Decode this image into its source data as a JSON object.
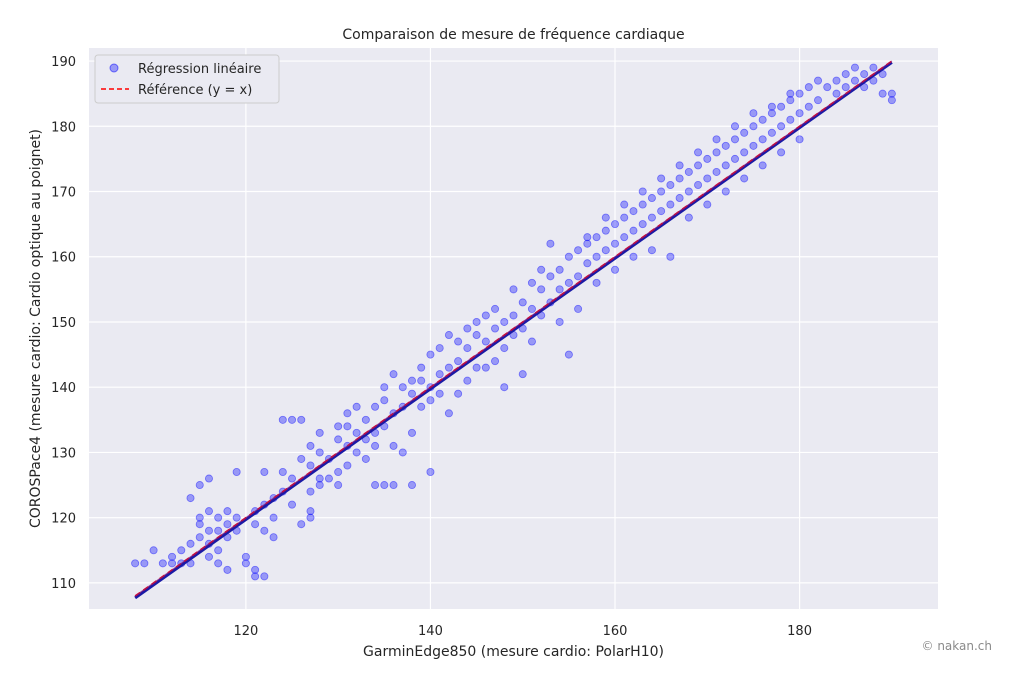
{
  "chart_data": {
    "type": "scatter",
    "title": "Comparaison de mesure de fréquence cardiaque",
    "xlabel": "GarminEdge850 (mesure cardio: PolarH10)",
    "ylabel": "COROSPace4 (mesure cardio: Cardio optique au poignet)",
    "xlim": [
      103,
      195
    ],
    "ylim": [
      106,
      192
    ],
    "xticks": [
      120,
      140,
      160,
      180
    ],
    "yticks": [
      110,
      120,
      130,
      140,
      150,
      160,
      170,
      180,
      190
    ],
    "grid": true,
    "legend_position": "top-left",
    "series": [
      {
        "name": "Régression linéaire",
        "kind": "scatter",
        "color": "#0000ff",
        "points": [
          [
            108,
            113
          ],
          [
            109,
            113
          ],
          [
            110,
            115
          ],
          [
            111,
            113
          ],
          [
            112,
            114
          ],
          [
            112,
            113
          ],
          [
            113,
            115
          ],
          [
            113,
            113
          ],
          [
            114,
            113
          ],
          [
            114,
            116
          ],
          [
            114,
            123
          ],
          [
            115,
            117
          ],
          [
            115,
            125
          ],
          [
            115,
            120
          ],
          [
            115,
            119
          ],
          [
            116,
            126
          ],
          [
            116,
            116
          ],
          [
            116,
            114
          ],
          [
            116,
            121
          ],
          [
            116,
            118
          ],
          [
            117,
            120
          ],
          [
            117,
            118
          ],
          [
            117,
            115
          ],
          [
            117,
            113
          ],
          [
            118,
            121
          ],
          [
            118,
            117
          ],
          [
            118,
            119
          ],
          [
            118,
            112
          ],
          [
            119,
            127
          ],
          [
            119,
            120
          ],
          [
            119,
            118
          ],
          [
            120,
            114
          ],
          [
            120,
            113
          ],
          [
            121,
            112
          ],
          [
            121,
            111
          ],
          [
            121,
            119
          ],
          [
            121,
            121
          ],
          [
            122,
            111
          ],
          [
            122,
            118
          ],
          [
            122,
            127
          ],
          [
            122,
            122
          ],
          [
            123,
            117
          ],
          [
            123,
            123
          ],
          [
            123,
            120
          ],
          [
            124,
            135
          ],
          [
            124,
            127
          ],
          [
            124,
            124
          ],
          [
            125,
            135
          ],
          [
            125,
            122
          ],
          [
            125,
            126
          ],
          [
            126,
            135
          ],
          [
            126,
            129
          ],
          [
            126,
            119
          ],
          [
            127,
            120
          ],
          [
            127,
            124
          ],
          [
            127,
            128
          ],
          [
            127,
            131
          ],
          [
            127,
            121
          ],
          [
            128,
            126
          ],
          [
            128,
            130
          ],
          [
            128,
            133
          ],
          [
            128,
            125
          ],
          [
            129,
            129
          ],
          [
            129,
            126
          ],
          [
            130,
            127
          ],
          [
            130,
            132
          ],
          [
            130,
            125
          ],
          [
            130,
            134
          ],
          [
            131,
            134
          ],
          [
            131,
            136
          ],
          [
            131,
            131
          ],
          [
            131,
            128
          ],
          [
            132,
            133
          ],
          [
            132,
            137
          ],
          [
            132,
            130
          ],
          [
            133,
            132
          ],
          [
            133,
            135
          ],
          [
            133,
            129
          ],
          [
            134,
            125
          ],
          [
            134,
            133
          ],
          [
            134,
            137
          ],
          [
            134,
            131
          ],
          [
            135,
            125
          ],
          [
            135,
            138
          ],
          [
            135,
            140
          ],
          [
            135,
            134
          ],
          [
            136,
            125
          ],
          [
            136,
            136
          ],
          [
            136,
            131
          ],
          [
            136,
            142
          ],
          [
            137,
            140
          ],
          [
            137,
            137
          ],
          [
            137,
            130
          ],
          [
            138,
            125
          ],
          [
            138,
            139
          ],
          [
            138,
            141
          ],
          [
            138,
            133
          ],
          [
            139,
            143
          ],
          [
            139,
            141
          ],
          [
            139,
            137
          ],
          [
            140,
            127
          ],
          [
            140,
            140
          ],
          [
            140,
            145
          ],
          [
            140,
            138
          ],
          [
            141,
            142
          ],
          [
            141,
            146
          ],
          [
            141,
            139
          ],
          [
            142,
            143
          ],
          [
            142,
            148
          ],
          [
            142,
            136
          ],
          [
            143,
            144
          ],
          [
            143,
            139
          ],
          [
            143,
            147
          ],
          [
            144,
            146
          ],
          [
            144,
            141
          ],
          [
            144,
            149
          ],
          [
            145,
            148
          ],
          [
            145,
            143
          ],
          [
            145,
            150
          ],
          [
            146,
            147
          ],
          [
            146,
            143
          ],
          [
            146,
            151
          ],
          [
            147,
            149
          ],
          [
            147,
            144
          ],
          [
            147,
            152
          ],
          [
            148,
            150
          ],
          [
            148,
            146
          ],
          [
            148,
            140
          ],
          [
            149,
            151
          ],
          [
            149,
            148
          ],
          [
            149,
            155
          ],
          [
            150,
            153
          ],
          [
            150,
            149
          ],
          [
            150,
            142
          ],
          [
            151,
            156
          ],
          [
            151,
            152
          ],
          [
            151,
            147
          ],
          [
            152,
            155
          ],
          [
            152,
            151
          ],
          [
            152,
            158
          ],
          [
            153,
            157
          ],
          [
            153,
            153
          ],
          [
            153,
            162
          ],
          [
            154,
            158
          ],
          [
            154,
            155
          ],
          [
            154,
            150
          ],
          [
            155,
            160
          ],
          [
            155,
            156
          ],
          [
            155,
            145
          ],
          [
            156,
            161
          ],
          [
            156,
            157
          ],
          [
            156,
            152
          ],
          [
            157,
            162
          ],
          [
            157,
            159
          ],
          [
            157,
            163
          ],
          [
            158,
            160
          ],
          [
            158,
            163
          ],
          [
            158,
            156
          ],
          [
            159,
            164
          ],
          [
            159,
            161
          ],
          [
            159,
            166
          ],
          [
            160,
            165
          ],
          [
            160,
            162
          ],
          [
            160,
            158
          ],
          [
            161,
            166
          ],
          [
            161,
            163
          ],
          [
            161,
            168
          ],
          [
            162,
            167
          ],
          [
            162,
            164
          ],
          [
            162,
            160
          ],
          [
            163,
            168
          ],
          [
            163,
            165
          ],
          [
            163,
            170
          ],
          [
            164,
            169
          ],
          [
            164,
            166
          ],
          [
            164,
            161
          ],
          [
            165,
            170
          ],
          [
            165,
            167
          ],
          [
            165,
            172
          ],
          [
            166,
            171
          ],
          [
            166,
            168
          ],
          [
            166,
            160
          ],
          [
            167,
            172
          ],
          [
            167,
            169
          ],
          [
            167,
            174
          ],
          [
            168,
            173
          ],
          [
            168,
            170
          ],
          [
            168,
            166
          ],
          [
            169,
            174
          ],
          [
            169,
            171
          ],
          [
            169,
            176
          ],
          [
            170,
            175
          ],
          [
            170,
            172
          ],
          [
            170,
            168
          ],
          [
            171,
            176
          ],
          [
            171,
            173
          ],
          [
            171,
            178
          ],
          [
            172,
            177
          ],
          [
            172,
            174
          ],
          [
            172,
            170
          ],
          [
            173,
            178
          ],
          [
            173,
            175
          ],
          [
            173,
            180
          ],
          [
            174,
            179
          ],
          [
            174,
            176
          ],
          [
            174,
            172
          ],
          [
            175,
            180
          ],
          [
            175,
            177
          ],
          [
            175,
            182
          ],
          [
            176,
            181
          ],
          [
            176,
            178
          ],
          [
            176,
            174
          ],
          [
            177,
            182
          ],
          [
            177,
            179
          ],
          [
            177,
            183
          ],
          [
            178,
            183
          ],
          [
            178,
            180
          ],
          [
            178,
            176
          ],
          [
            179,
            184
          ],
          [
            179,
            181
          ],
          [
            179,
            185
          ],
          [
            180,
            185
          ],
          [
            180,
            182
          ],
          [
            180,
            178
          ],
          [
            181,
            186
          ],
          [
            181,
            183
          ],
          [
            182,
            187
          ],
          [
            182,
            184
          ],
          [
            183,
            186
          ],
          [
            184,
            187
          ],
          [
            184,
            185
          ],
          [
            185,
            188
          ],
          [
            185,
            186
          ],
          [
            186,
            187
          ],
          [
            186,
            189
          ],
          [
            187,
            188
          ],
          [
            187,
            186
          ],
          [
            188,
            189
          ],
          [
            188,
            187
          ],
          [
            189,
            188
          ],
          [
            189,
            185
          ],
          [
            190,
            185
          ],
          [
            190,
            184
          ]
        ]
      },
      {
        "name": "Référence (y = x)",
        "kind": "line",
        "dash": true,
        "color": "#ff0000",
        "points": [
          [
            108,
            108
          ],
          [
            190,
            190
          ]
        ]
      }
    ]
  },
  "footer": {
    "copyright": "© nakan.ch"
  }
}
